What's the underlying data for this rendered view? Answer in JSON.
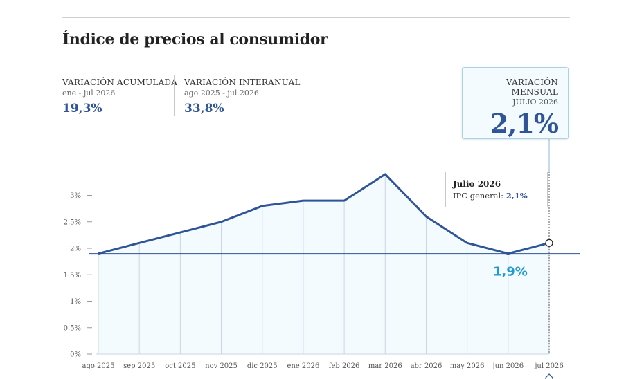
{
  "page": {
    "title": "Índice de precios al consumidor"
  },
  "stats": {
    "acumulada": {
      "label": "VARIACIÓN ACUMULADA",
      "period": "ene - jul 2026",
      "value": "19,3%"
    },
    "interanual": {
      "label": "VARIACIÓN INTERANUAL",
      "period": "ago 2025 - jul 2026",
      "value": "33,8%"
    },
    "mensual": {
      "label": "VARIACIÓN MENSUAL",
      "period": "JULIO 2026",
      "value": "2,1%"
    }
  },
  "tooltip": {
    "title": "Julio 2026",
    "series_label": "IPC general:",
    "value": "2,1%"
  },
  "reference": {
    "value": 1.9,
    "label": "1,9%"
  },
  "colors": {
    "line": "#2f5597",
    "area": "#f3fbff",
    "reference_label": "#1f9ad6"
  },
  "chart_data": {
    "type": "area",
    "categories": [
      "ago 2025",
      "sep 2025",
      "oct 2025",
      "nov 2025",
      "dic 2025",
      "ene 2026",
      "feb 2026",
      "mar 2026",
      "abr 2026",
      "may 2026",
      "jun 2026",
      "jul 2026"
    ],
    "series": [
      {
        "values": [
          1.9,
          2.1,
          2.3,
          2.5,
          2.8,
          2.9,
          2.9,
          3.4,
          2.6,
          2.1,
          1.9,
          2.1
        ]
      }
    ],
    "y_ticks": [
      0,
      0.5,
      1,
      1.5,
      2,
      2.5,
      3
    ],
    "y_tick_labels": [
      "0%",
      "0.5%",
      "1%",
      "1.5%",
      "2%",
      "2.5%",
      "3%"
    ],
    "ylim": [
      0,
      3.5
    ],
    "highlight_index": 11,
    "grid": "vertical"
  }
}
